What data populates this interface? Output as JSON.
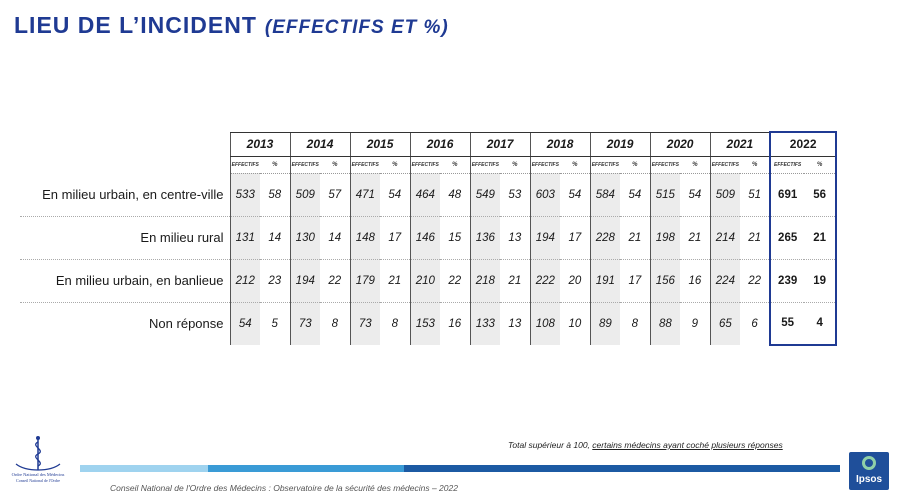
{
  "title": {
    "main": "LIEU DE L’INCIDENT",
    "sub": "(EFFECTIFS ET %)"
  },
  "table": {
    "years": [
      "2013",
      "2014",
      "2015",
      "2016",
      "2017",
      "2018",
      "2019",
      "2020",
      "2021",
      "2022"
    ],
    "sub_eff": "EFFECTIFS",
    "sub_pct": "%",
    "rows": [
      {
        "label": "En milieu urbain, en centre-ville",
        "values": [
          "533",
          "58",
          "509",
          "57",
          "471",
          "54",
          "464",
          "48",
          "549",
          "53",
          "603",
          "54",
          "584",
          "54",
          "515",
          "54",
          "509",
          "51",
          "691",
          "56"
        ]
      },
      {
        "label": "En milieu rural",
        "values": [
          "131",
          "14",
          "130",
          "14",
          "148",
          "17",
          "146",
          "15",
          "136",
          "13",
          "194",
          "17",
          "228",
          "21",
          "198",
          "21",
          "214",
          "21",
          "265",
          "21"
        ]
      },
      {
        "label": "En milieu urbain, en banlieue",
        "values": [
          "212",
          "23",
          "194",
          "22",
          "179",
          "21",
          "210",
          "22",
          "218",
          "21",
          "222",
          "20",
          "191",
          "17",
          "156",
          "16",
          "224",
          "22",
          "239",
          "19"
        ]
      },
      {
        "label": "Non réponse",
        "values": [
          "54",
          "5",
          "73",
          "8",
          "73",
          "8",
          "153",
          "16",
          "133",
          "13",
          "108",
          "10",
          "89",
          "8",
          "88",
          "9",
          "65",
          "6",
          "55",
          "4"
        ]
      }
    ]
  },
  "note": {
    "prefix": "Total supérieur à 100, ",
    "underlined": "certains médecins ayant coché plusieurs réponses"
  },
  "footer": "Conseil National de l'Ordre des Médecins : Observatoire de la sécurité des médecins – 2022",
  "logos": {
    "left_line1": "Ordre National des Médecins",
    "left_line2": "Conseil National de l'Ordre",
    "right": "Ipsos"
  },
  "colors": {
    "title": "#1f3a93",
    "accent_border": "#1f3a93",
    "bar_light": "#9fd3ef",
    "bar_mid": "#3a9bd6",
    "bar_dark": "#1c5aa3",
    "shade": "#ececec"
  }
}
